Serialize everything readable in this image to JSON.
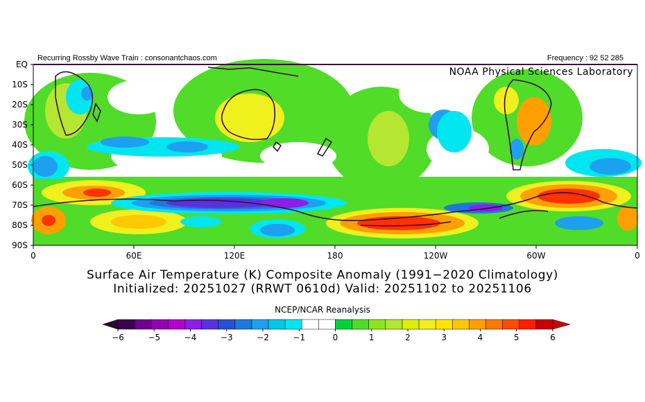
{
  "header": {
    "left": "Recurring Rossby Wave Train : consonantchaos.com",
    "right": "Frequency : 92 52 285",
    "lab": "NOAA Physical Sciences Laboratory"
  },
  "titles": {
    "line1": "Surface Air Temperature (K) Composite Anomaly (1991−2020 Climatology)",
    "line2": "Initialized: 20251027 (RRWT 0610d) Valid: 20251102 to 20251106"
  },
  "source_label": "NCEP/NCAR Reanalysis",
  "map": {
    "lat_labels": [
      "EQ",
      "10S",
      "20S",
      "30S",
      "40S",
      "50S",
      "60S",
      "70S",
      "80S",
      "90S"
    ],
    "lon_labels": [
      "0",
      "60E",
      "120E",
      "180",
      "120W",
      "60W",
      "0"
    ]
  },
  "colorbar": {
    "tick_labels": [
      "−6",
      "−5",
      "−4",
      "−3",
      "−2",
      "−1",
      "0",
      "1",
      "2",
      "3",
      "4",
      "5",
      "6"
    ],
    "colors": [
      "#3c0050",
      "#6e008c",
      "#9600b4",
      "#b400c8",
      "#8c1ee6",
      "#5a32dc",
      "#2850d2",
      "#1e78dc",
      "#1ea0f0",
      "#00c8e6",
      "#00e6f0",
      "#ffffff",
      "#ffffff",
      "#00d23c",
      "#50dc28",
      "#8ce61e",
      "#b4e632",
      "#dcf000",
      "#f0f01e",
      "#ffe600",
      "#ffc800",
      "#ffa000",
      "#ff7800",
      "#ff4b00",
      "#ff1e00",
      "#c80000"
    ],
    "left_arrow": "#2a0a33",
    "right_arrow": "#cc0000"
  },
  "palette": {
    "blue_dark": "#1e78dc",
    "blue": "#1ea0f0",
    "cyan": "#00e6f0",
    "green": "#50dc28",
    "lgreen": "#8ce61e",
    "ygreen": "#b4e632",
    "yellow": "#f0f01e",
    "orange": "#ffa000",
    "red": "#ff3200",
    "purple": "#5a32dc",
    "violet": "#8c1ee6",
    "land": "#3a0a3a"
  }
}
